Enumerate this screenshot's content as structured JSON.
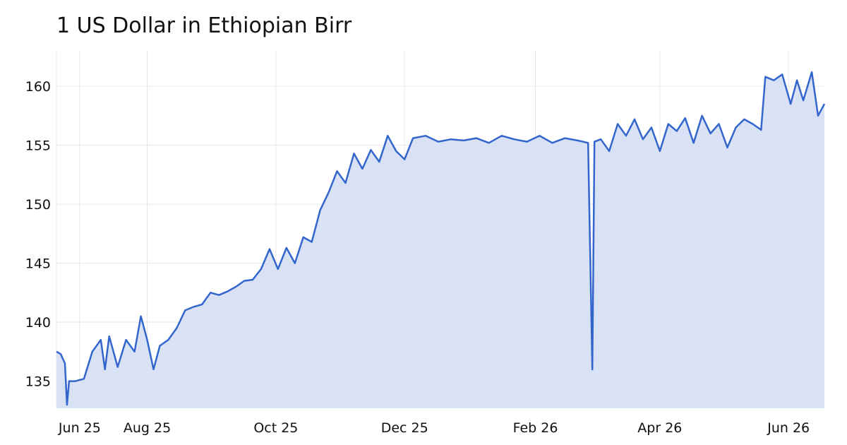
{
  "chart_data": {
    "type": "area",
    "title": "1 US Dollar in Ethiopian Birr",
    "color": "#3366cc",
    "fill": "#d9e1f5",
    "grid": true,
    "x": [
      "2025-06-19",
      "2025-06-21",
      "2025-06-23",
      "2025-06-24",
      "2025-06-25",
      "2025-06-28",
      "2025-07-02",
      "2025-07-06",
      "2025-07-10",
      "2025-07-12",
      "2025-07-14",
      "2025-07-18",
      "2025-07-22",
      "2025-07-26",
      "2025-07-29",
      "2025-08-01",
      "2025-08-04",
      "2025-08-07",
      "2025-08-11",
      "2025-08-15",
      "2025-08-19",
      "2025-08-23",
      "2025-08-27",
      "2025-08-31",
      "2025-09-04",
      "2025-09-08",
      "2025-09-12",
      "2025-09-16",
      "2025-09-20",
      "2025-09-24",
      "2025-09-28",
      "2025-10-02",
      "2025-10-06",
      "2025-10-10",
      "2025-10-14",
      "2025-10-18",
      "2025-10-22",
      "2025-10-26",
      "2025-10-30",
      "2025-11-03",
      "2025-11-07",
      "2025-11-11",
      "2025-11-15",
      "2025-11-19",
      "2025-11-23",
      "2025-11-27",
      "2025-12-01",
      "2025-12-05",
      "2025-12-11",
      "2025-12-17",
      "2025-12-23",
      "2025-12-29",
      "2026-01-04",
      "2026-01-10",
      "2026-01-16",
      "2026-01-22",
      "2026-01-28",
      "2026-02-03",
      "2026-02-09",
      "2026-02-15",
      "2026-02-21",
      "2026-02-26",
      "2026-02-28",
      "2026-03-01",
      "2026-03-04",
      "2026-03-08",
      "2026-03-12",
      "2026-03-16",
      "2026-03-20",
      "2026-03-24",
      "2026-03-28",
      "2026-04-01",
      "2026-04-05",
      "2026-04-09",
      "2026-04-13",
      "2026-04-17",
      "2026-04-21",
      "2026-04-25",
      "2026-04-29",
      "2026-05-03",
      "2026-05-07",
      "2026-05-11",
      "2026-05-15",
      "2026-05-19",
      "2026-05-21",
      "2026-05-25",
      "2026-05-29",
      "2026-06-02",
      "2026-06-05",
      "2026-06-08",
      "2026-06-12",
      "2026-06-15",
      "2026-06-18"
    ],
    "values": [
      137.5,
      137.3,
      136.5,
      133,
      135,
      135,
      135.2,
      137.5,
      138.5,
      136,
      138.8,
      136.2,
      138.5,
      137.5,
      140.5,
      138.5,
      136,
      138,
      138.5,
      139.5,
      141,
      141.3,
      141.5,
      142.5,
      142.3,
      142.6,
      143,
      143.5,
      143.6,
      144.5,
      146.2,
      144.5,
      146.3,
      145,
      147.2,
      146.8,
      149.5,
      151,
      152.8,
      151.8,
      154.3,
      153,
      154.6,
      153.6,
      155.8,
      154.5,
      153.8,
      155.6,
      155.8,
      155.3,
      155.5,
      155.4,
      155.6,
      155.2,
      155.8,
      155.5,
      155.3,
      155.8,
      155.2,
      155.6,
      155.4,
      155.2,
      136,
      155.3,
      155.5,
      154.5,
      156.8,
      155.8,
      157.2,
      155.5,
      156.5,
      154.5,
      156.8,
      156.2,
      157.3,
      155.2,
      157.5,
      156,
      156.8,
      154.8,
      156.5,
      157.2,
      156.8,
      156.3,
      160.8,
      160.5,
      161,
      158.5,
      160.5,
      158.8,
      161.2,
      157.5,
      158.5
    ],
    "ylim": [
      132.7,
      163
    ],
    "yticks": [
      135,
      140,
      145,
      150,
      155,
      160
    ],
    "xlim": [
      "2025-06-19",
      "2026-06-18"
    ],
    "xticks": [
      {
        "value": "2025-06-30",
        "label": "Jun 25"
      },
      {
        "value": "2025-08-01",
        "label": "Aug 25"
      },
      {
        "value": "2025-10-01",
        "label": "Oct 25"
      },
      {
        "value": "2025-12-01",
        "label": "Dec 25"
      },
      {
        "value": "2026-02-01",
        "label": "Feb 26"
      },
      {
        "value": "2026-04-01",
        "label": "Apr 26"
      },
      {
        "value": "2026-06-01",
        "label": "Jun 26"
      }
    ]
  }
}
